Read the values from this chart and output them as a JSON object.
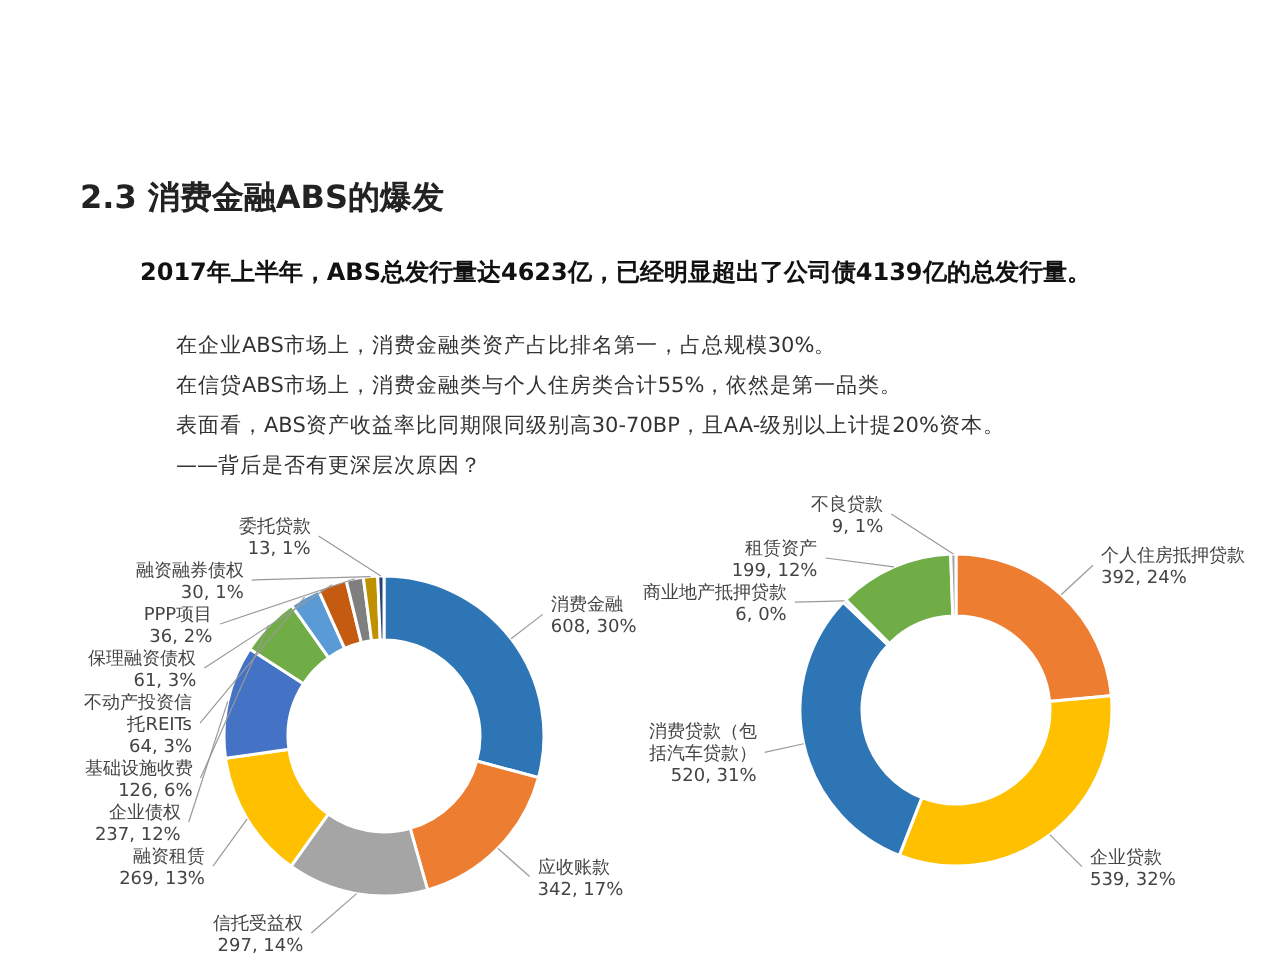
{
  "chart_data": [
    {
      "type": "donut",
      "title": "2.3  消费金融ABS的爆发",
      "subtitle": "2017年上半年，ABS总发行量达4623亿，已经明显超出了公司债4139亿的总发行量。",
      "annotations": [
        "在企业ABS市场上，消费金融类资产占比排名第一，占总规模30%。",
        "在信贷ABS市场上，消费金融类与个人住房类合计55%，依然是第一品类。",
        "表面看，ABS资产收益率比同期限同级别高30-70BP，且AA-级别以上计提20%资本。",
        "——背后是否有更深层次原因？"
      ],
      "categories": [
        "消费金融",
        "应收账款",
        "信托受益权",
        "融资租赁",
        "企业债权",
        "基础设施收费",
        "不动产投资信托REITs",
        "保理融资债权",
        "PPP项目",
        "融资融券债权",
        "委托贷款"
      ],
      "values": [
        608,
        342,
        297,
        269,
        237,
        126,
        64,
        61,
        36,
        30,
        13
      ],
      "value_labels": [
        "608, 30%",
        "342, 17%",
        "297, 14%",
        "269, 13%",
        "237, 12%",
        "126, 6%",
        "64, 3%",
        "61, 3%",
        "36, 2%",
        "30, 1%",
        "13, 1%"
      ],
      "colors": [
        "#2e75b6",
        "#ed7d31",
        "#a5a5a5",
        "#ffc000",
        "#4472c4",
        "#70ad47",
        "#5b9bd5",
        "#c55a11",
        "#7f7f7f",
        "#bf9000",
        "#264478"
      ]
    },
    {
      "type": "donut",
      "categories": [
        "个人住房抵押贷款",
        "企业贷款",
        "消费贷款（包括汽车贷款）",
        "商业地产抵押贷款",
        "租赁资产",
        "不良贷款"
      ],
      "values": [
        392,
        539,
        520,
        6,
        199,
        9
      ],
      "value_labels": [
        "392, 24%",
        "539, 32%",
        "520, 31%",
        "6, 0%",
        "199, 12%",
        "9, 1%"
      ],
      "colors": [
        "#ed7d31",
        "#ffc000",
        "#2e75b6",
        "#5b9bd5",
        "#70ad47",
        "#a5a5a5"
      ]
    }
  ]
}
